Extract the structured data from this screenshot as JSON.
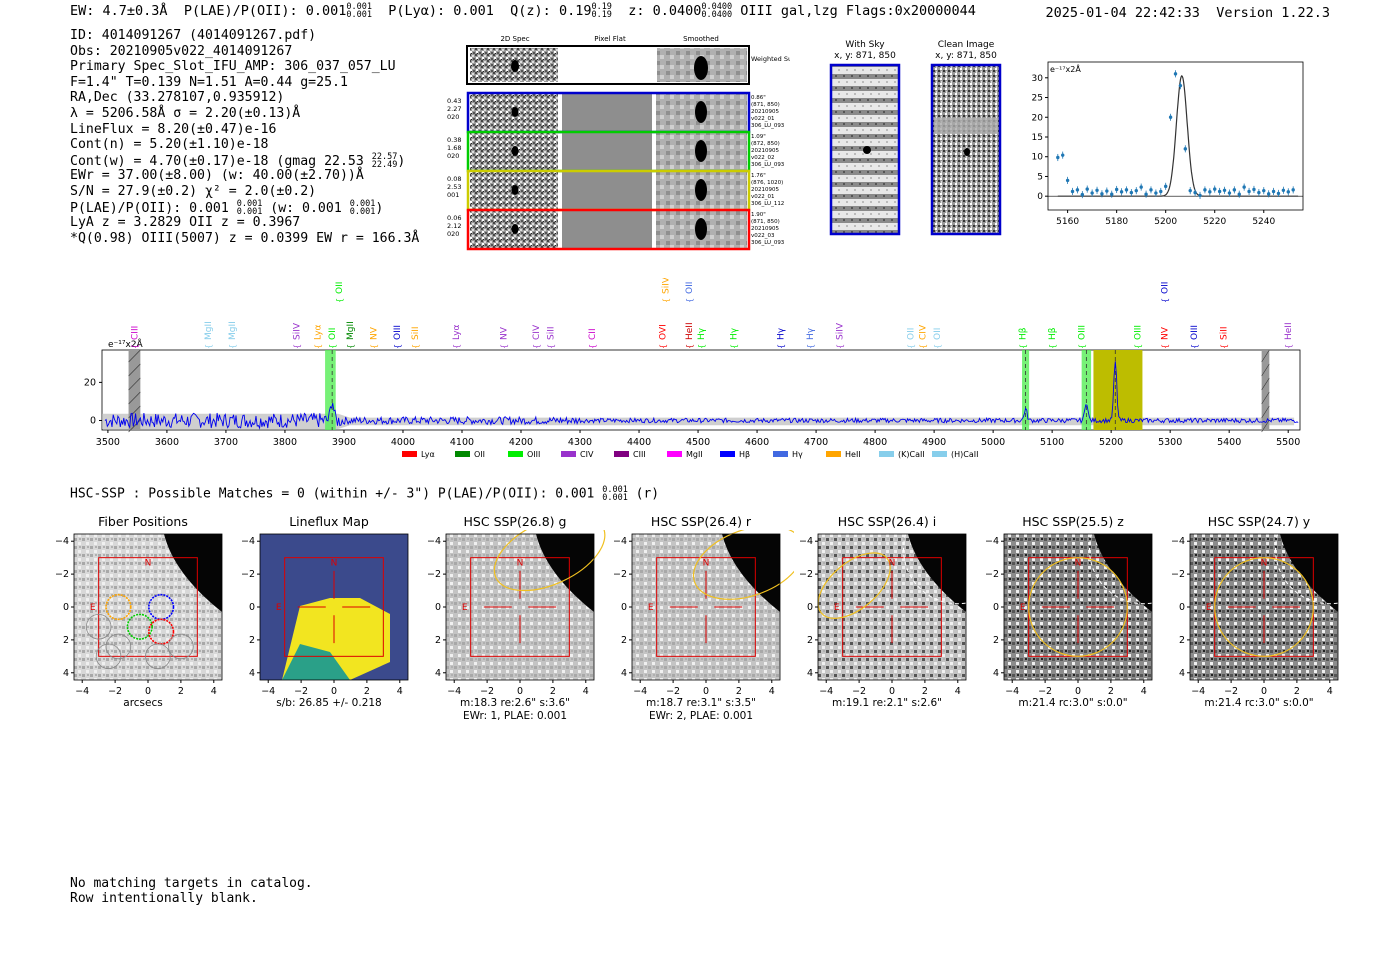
{
  "header": {
    "ew": "EW: 4.7±0.3Å",
    "plae_label": "P(LAE)/P(OII): 0.001",
    "plae_hi": "0.001",
    "plae_lo": "0.001",
    "plya": "P(Lyα): 0.001",
    "qz_label": "Q(z): 0.19",
    "qz_hi": "0.19",
    "qz_lo": "0.19",
    "z_label": "z: 0.0400",
    "z_hi": "0.0400",
    "z_lo": "0.0400",
    "z_rest": "OIII  gal,lzg  Flags:0x20000044",
    "timestamp": "2025-01-04 22:42:33",
    "version": "Version 1.22.3"
  },
  "info": {
    "id": "ID: 4014091267 (4014091267.pdf)",
    "obs": "Obs: 20210905v022_4014091267",
    "primary": "Primary Spec_Slot_IFU_AMP: 306_037_057_LU",
    "fline": "F=1.4\"  T=0.139  N=1.51  A=0.44  g=25.1",
    "radec": "RA,Dec (33.278107,0.935912)",
    "lambda": "λ = 5206.58Å  σ = 2.20(±0.13)Å",
    "lineflux": "LineFlux = 8.20(±0.47)e-16",
    "contn": "Cont(n) = 5.20(±1.10)e-18",
    "contw": "Cont(w) = 4.70(±0.17)e-18 (gmag 22.53",
    "contw_hi": "22.57",
    "contw_lo": "22.49",
    "contw_end": ")",
    "ewr": "EWr = 37.00(±8.00) (w: 40.00(±2.70))Å",
    "sn": "S/N = 27.9(±0.2)  χ² = 2.0(±0.2)",
    "plae2": "P(LAE)/P(OII): 0.001",
    "plae2_hi": "0.001",
    "plae2_lo": "0.001",
    "plae2_w": "(w: 0.001",
    "plae2_w_hi": "0.001",
    "plae2_w_lo": "0.001",
    "plae2_end": ")",
    "lya": "LyA z = 3.2829  OII z = 0.3967",
    "qline": "*Q(0.98) OIII(5007) z = 0.0399  EW r = 166.3Å"
  },
  "cutouts": {
    "col_titles": [
      "2D Spec",
      "Pixel Flat",
      "Smoothed"
    ],
    "weighted": "Weighted Sum",
    "rows": [
      {
        "left": [
          "0.43",
          "2.27",
          "020"
        ],
        "right": [
          "0.86\"",
          "(871, 850)",
          "20210905",
          "v022_01",
          "306_LU_093"
        ],
        "color": "#0000cc"
      },
      {
        "left": [
          "0.38",
          "1.68",
          "020"
        ],
        "right": [
          "1.09\"",
          "(872, 850)",
          "20210905",
          "v022_02",
          "306_LU_093"
        ],
        "color": "#00cc00"
      },
      {
        "left": [
          "0.08",
          "2.53",
          "001"
        ],
        "right": [
          "1.76\"",
          "(876, 1020)",
          "20210905",
          "v022_01",
          "306_LU_112"
        ],
        "color": "#cccc00"
      },
      {
        "left": [
          "0.06",
          "2.12",
          "020"
        ],
        "right": [
          "1.90\"",
          "(871, 850)",
          "20210905",
          "v022_03",
          "306_LU_093"
        ],
        "color": "#ff0000"
      }
    ],
    "with_sky_title": "With Sky",
    "with_sky_xy": "x, y: 871, 850",
    "clean_title": "Clean Image",
    "clean_xy": "x, y: 871, 850"
  },
  "chart_data": [
    {
      "type": "line",
      "title": "",
      "ylabel": "e⁻¹⁷x2Å",
      "xlim": [
        5152,
        5256
      ],
      "ylim": [
        -3.5,
        34
      ],
      "xticks": [
        5160,
        5180,
        5200,
        5220,
        5240
      ],
      "yticks": [
        0,
        5,
        10,
        15,
        20,
        25,
        30
      ],
      "points_x": [
        5156,
        5158,
        5160,
        5162,
        5164,
        5166,
        5168,
        5170,
        5172,
        5174,
        5176,
        5178,
        5180,
        5182,
        5184,
        5186,
        5188,
        5190,
        5192,
        5194,
        5196,
        5198,
        5200,
        5202,
        5204,
        5206,
        5208,
        5210,
        5212,
        5214,
        5216,
        5218,
        5220,
        5222,
        5224,
        5226,
        5228,
        5230,
        5232,
        5234,
        5236,
        5238,
        5240,
        5242,
        5244,
        5246,
        5248,
        5250,
        5252
      ],
      "points_y": [
        9.8,
        10.4,
        4.0,
        1.2,
        1.6,
        0.4,
        1.8,
        0.8,
        1.5,
        0.6,
        1.3,
        0.5,
        1.7,
        1.1,
        1.6,
        0.9,
        1.4,
        2.3,
        0.5,
        1.6,
        0.8,
        1.2,
        2.5,
        20.0,
        31.0,
        28.0,
        12.0,
        1.4,
        0.9,
        0.2,
        1.6,
        1.1,
        1.8,
        1.2,
        1.5,
        0.8,
        1.6,
        0.5,
        2.3,
        1.2,
        1.7,
        0.9,
        1.4,
        0.6,
        1.2,
        0.7,
        1.5,
        1.1,
        1.6
      ],
      "fit_center": 5206.58,
      "fit_sigma": 2.2,
      "fit_peak": 30.5
    },
    {
      "type": "line",
      "ylabel": "e⁻¹⁷x2Å",
      "xlim": [
        3490,
        5520
      ],
      "ylim": [
        -5,
        37
      ],
      "xticks": [
        3500,
        3600,
        3700,
        3800,
        3900,
        4000,
        4100,
        4200,
        4300,
        4400,
        4500,
        4600,
        4700,
        4800,
        4900,
        5000,
        5100,
        5200,
        5300,
        5400,
        5500
      ],
      "yticks": [
        0,
        20
      ],
      "peaks": [
        {
          "x": 3880,
          "h": 11
        },
        {
          "x": 5055,
          "h": 6
        },
        {
          "x": 5158,
          "h": 10
        },
        {
          "x": 5207,
          "h": 31
        }
      ],
      "green_bands": [
        [
          3868,
          3886
        ],
        [
          5049,
          5061
        ],
        [
          5150,
          5166
        ]
      ],
      "yellow_band": [
        5170,
        5253
      ],
      "hatch_bands": [
        [
          3535,
          3555
        ],
        [
          5455,
          5468
        ]
      ],
      "dashed_lines": [
        3880,
        5055,
        5158,
        5207
      ],
      "lines": [
        {
          "label": "CIII",
          "x": 3545,
          "color": "#cc00cc",
          "row": 0
        },
        {
          "label": "MgII",
          "x": 3670,
          "color": "#87ceeb",
          "row": 0
        },
        {
          "label": "MgII",
          "x": 3710,
          "color": "#87ceeb",
          "row": 0
        },
        {
          "label": "SiIV",
          "x": 3820,
          "color": "#9932cc",
          "row": 0
        },
        {
          "label": "Lyα",
          "x": 3855,
          "color": "#ffa500",
          "row": 0
        },
        {
          "label": "OII",
          "x": 3880,
          "color": "#00ee00",
          "row": 0
        },
        {
          "label": "OII",
          "x": 3892,
          "color": "#00ee00",
          "row": 1
        },
        {
          "label": "MgII",
          "x": 3910,
          "color": "#008800",
          "row": 0
        },
        {
          "label": "NV",
          "x": 3950,
          "color": "#ffa500",
          "row": 0
        },
        {
          "label": "OIII",
          "x": 3990,
          "color": "#0000cc",
          "row": 0
        },
        {
          "label": "SiII",
          "x": 4020,
          "color": "#ffa500",
          "row": 0
        },
        {
          "label": "Lyα",
          "x": 4090,
          "color": "#9932cc",
          "row": 0
        },
        {
          "label": "NV",
          "x": 4170,
          "color": "#9932cc",
          "row": 0
        },
        {
          "label": "CIV",
          "x": 4225,
          "color": "#9932cc",
          "row": 0
        },
        {
          "label": "SiII",
          "x": 4250,
          "color": "#9932cc",
          "row": 0
        },
        {
          "label": "CII",
          "x": 4320,
          "color": "#cc00cc",
          "row": 0
        },
        {
          "label": "OVI",
          "x": 4440,
          "color": "#ff0000",
          "row": 0
        },
        {
          "label": "SiIV",
          "x": 4445,
          "color": "#ffa500",
          "row": 1
        },
        {
          "label": "HeII",
          "x": 4485,
          "color": "#cc0000",
          "row": 0
        },
        {
          "label": "OII",
          "x": 4485,
          "color": "#4169e1",
          "row": 1
        },
        {
          "label": "Hγ",
          "x": 4505,
          "color": "#00ee00",
          "row": 0
        },
        {
          "label": "Hγ",
          "x": 4560,
          "color": "#00ee00",
          "row": 0
        },
        {
          "label": "Hγ",
          "x": 4640,
          "color": "#0000cc",
          "row": 0
        },
        {
          "label": "Hγ",
          "x": 4690,
          "color": "#4169e1",
          "row": 0
        },
        {
          "label": "SiIV",
          "x": 4740,
          "color": "#9932cc",
          "row": 0
        },
        {
          "label": "OII",
          "x": 4860,
          "color": "#87ceeb",
          "row": 0
        },
        {
          "label": "CIV",
          "x": 4880,
          "color": "#ffa500",
          "row": 0
        },
        {
          "label": "OII",
          "x": 4905,
          "color": "#87ceeb",
          "row": 0
        },
        {
          "label": "Hβ",
          "x": 5050,
          "color": "#00ee00",
          "row": 0
        },
        {
          "label": "Hβ",
          "x": 5100,
          "color": "#00ee00",
          "row": 0
        },
        {
          "label": "OIII",
          "x": 5150,
          "color": "#00ee00",
          "row": 0
        },
        {
          "label": "OIII",
          "x": 5245,
          "color": "#00ee00",
          "row": 0
        },
        {
          "label": "NV",
          "x": 5290,
          "color": "#ff0000",
          "row": 0
        },
        {
          "label": "OII",
          "x": 5290,
          "color": "#0000cc",
          "row": 1
        },
        {
          "label": "OIII",
          "x": 5340,
          "color": "#0000cc",
          "row": 0
        },
        {
          "label": "SiII",
          "x": 5390,
          "color": "#ff0000",
          "row": 0
        },
        {
          "label": "HeII",
          "x": 5500,
          "color": "#9932cc",
          "row": 0
        }
      ],
      "legend": [
        {
          "label": "Lyα",
          "color": "#ff0000"
        },
        {
          "label": "OII",
          "color": "#008800"
        },
        {
          "label": "OIII",
          "color": "#00ee00"
        },
        {
          "label": "CIV",
          "color": "#9932cc"
        },
        {
          "label": "CIII",
          "color": "#800080"
        },
        {
          "label": "MgII",
          "color": "#ff00ff"
        },
        {
          "label": "Hβ",
          "color": "#0000ff"
        },
        {
          "label": "Hγ",
          "color": "#4169e1"
        },
        {
          "label": "HeII",
          "color": "#ffa500"
        },
        {
          "label": "(K)CaII",
          "color": "#87ceeb"
        },
        {
          "label": "(H)CaII",
          "color": "#87ceeb"
        }
      ]
    }
  ],
  "hsc": {
    "heading": "HSC-SSP : Possible Matches = 0 (within +/- 3\")  P(LAE)/P(OII): 0.001",
    "heading_hi": "0.001",
    "heading_lo": "0.001",
    "heading_end": "(r)",
    "ticks": [
      "−4",
      "−2",
      "0",
      "2",
      "4"
    ],
    "panels": [
      {
        "title": "Fiber Positions",
        "cap1": "arcsecs",
        "cap2": ""
      },
      {
        "title": "Lineflux Map",
        "cap1": "s/b: 26.85 +/- 0.218",
        "cap2": ""
      },
      {
        "title": "HSC SSP(26.8) g",
        "cap1": "m:18.3  re:2.6\"  s:3.6\"",
        "cap2": "EWr: 1, PLAE: 0.001"
      },
      {
        "title": "HSC SSP(26.4) r",
        "cap1": "m:18.7  re:3.1\"  s:3.5\"",
        "cap2": "EWr: 2, PLAE: 0.001"
      },
      {
        "title": "HSC SSP(26.4) i",
        "cap1": "m:19.1  re:2.1\"  s:2.6\"",
        "cap2": ""
      },
      {
        "title": "HSC SSP(25.5) z",
        "cap1": "m:21.4  rc:3.0\"  s:0.0\"",
        "cap2": ""
      },
      {
        "title": "HSC SSP(24.7) y",
        "cap1": "m:21.4  rc:3.0\"  s:0.0\"",
        "cap2": ""
      }
    ],
    "compass_n": "N",
    "compass_e": "E"
  },
  "footer": {
    "line1": "No matching targets in catalog.",
    "line2": "Row intentionally blank."
  }
}
